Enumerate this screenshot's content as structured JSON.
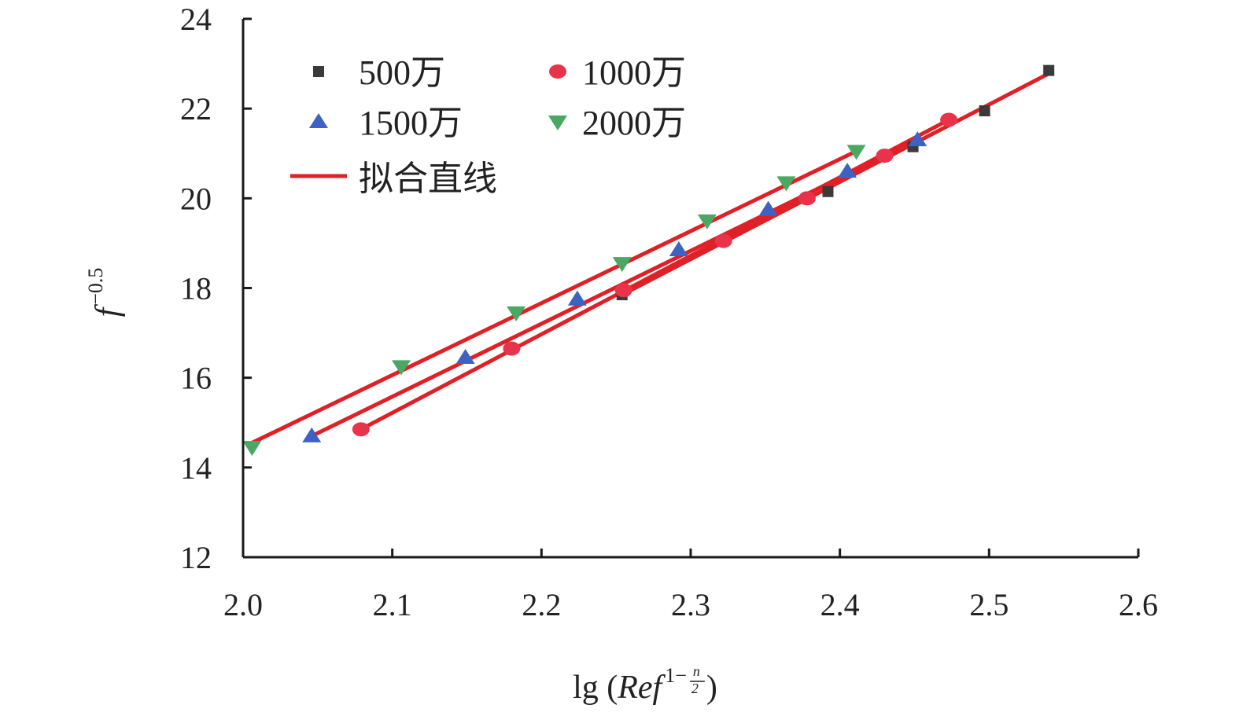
{
  "chart_data": {
    "type": "scatter",
    "xlim": [
      2.0,
      2.6
    ],
    "ylim": [
      12,
      24
    ],
    "x_ticks": [
      2.0,
      2.1,
      2.2,
      2.3,
      2.4,
      2.5,
      2.6
    ],
    "y_ticks": [
      12,
      14,
      16,
      18,
      20,
      22,
      24
    ],
    "x_tick_labels": [
      "2.0",
      "2.1",
      "2.2",
      "2.3",
      "2.4",
      "2.5",
      "2.6"
    ],
    "y_tick_labels": [
      "12",
      "14",
      "16",
      "18",
      "20",
      "22",
      "24"
    ],
    "xlabel": {
      "prefix": "lg (",
      "var": "Ref",
      "exp_prefix": "1−",
      "exp_num": "n",
      "exp_den": "2",
      "suffix": ")"
    },
    "ylabel": {
      "var": "f",
      "exp": "−0.5"
    },
    "grid": false,
    "legend_position": "top-left",
    "series": [
      {
        "name": "500万",
        "marker": "square",
        "color": "#3a3a3a",
        "points": [
          [
            2.254,
            17.85
          ],
          [
            2.392,
            20.15
          ],
          [
            2.449,
            21.15
          ],
          [
            2.497,
            21.95
          ],
          [
            2.54,
            22.85
          ]
        ],
        "fit": [
          [
            2.254,
            17.85
          ],
          [
            2.54,
            22.78
          ]
        ]
      },
      {
        "name": "1000万",
        "marker": "circle",
        "color": "#e8334a",
        "points": [
          [
            2.079,
            14.85
          ],
          [
            2.18,
            16.65
          ],
          [
            2.255,
            17.95
          ],
          [
            2.322,
            19.05
          ],
          [
            2.378,
            20.0
          ],
          [
            2.43,
            20.95
          ],
          [
            2.473,
            21.75
          ]
        ],
        "fit": [
          [
            2.079,
            14.85
          ],
          [
            2.473,
            21.75
          ]
        ]
      },
      {
        "name": "1500万",
        "marker": "triangle-up",
        "color": "#3d62c4",
        "points": [
          [
            2.046,
            14.7
          ],
          [
            2.149,
            16.45
          ],
          [
            2.224,
            17.75
          ],
          [
            2.292,
            18.85
          ],
          [
            2.352,
            19.75
          ],
          [
            2.405,
            20.6
          ],
          [
            2.452,
            21.3
          ]
        ],
        "fit": [
          [
            2.046,
            14.7
          ],
          [
            2.452,
            21.3
          ]
        ]
      },
      {
        "name": "2000万",
        "marker": "triangle-down",
        "color": "#4aa862",
        "points": [
          [
            2.006,
            14.45
          ],
          [
            2.106,
            16.25
          ],
          [
            2.183,
            17.45
          ],
          [
            2.254,
            18.55
          ],
          [
            2.311,
            19.5
          ],
          [
            2.364,
            20.35
          ],
          [
            2.411,
            21.05
          ]
        ],
        "fit": [
          [
            2.006,
            14.55
          ],
          [
            2.411,
            21.05
          ]
        ]
      }
    ],
    "fit_line": {
      "name": "拟合直线",
      "color": "#e02027"
    }
  }
}
